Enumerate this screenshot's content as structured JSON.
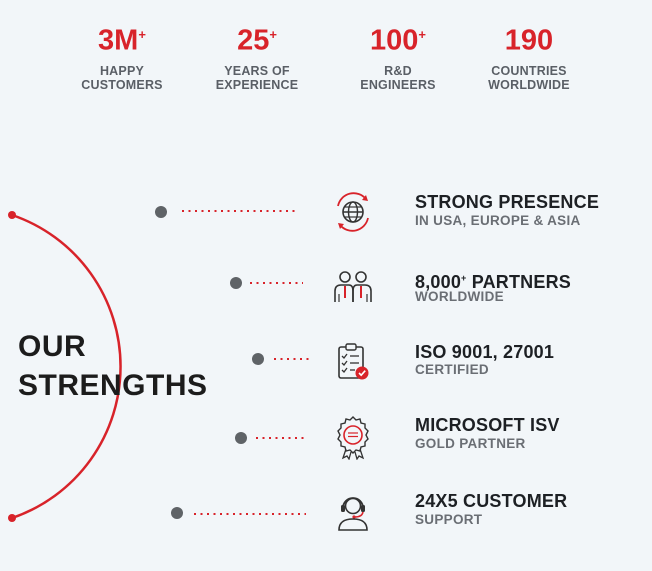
{
  "stats": [
    {
      "value": "3M",
      "suffix": "+",
      "line1": "HAPPY",
      "line2": "CUSTOMERS"
    },
    {
      "value": "25",
      "suffix": "+",
      "line1": "YEARS OF",
      "line2": "EXPERIENCE"
    },
    {
      "value": "100",
      "suffix": "+",
      "line1": "R&D",
      "line2": "ENGINEERS"
    },
    {
      "value": "190",
      "suffix": "",
      "line1": "COUNTRIES",
      "line2": "WORLDWIDE"
    }
  ],
  "section": {
    "title_line1": "OUR",
    "title_line2": "STRENGTHS"
  },
  "strengths": [
    {
      "icon": "globe-icon",
      "title": "STRONG PRESENCE",
      "title_suffix": "",
      "title_rest": "",
      "subtitle": "IN USA, EUROPE & ASIA"
    },
    {
      "icon": "partners-icon",
      "title": "8,000",
      "title_suffix": "+",
      "title_rest": " PARTNERS",
      "subtitle": "WORLDWIDE"
    },
    {
      "icon": "checklist-icon",
      "title": "ISO 9001, 27001",
      "title_suffix": "",
      "title_rest": "",
      "subtitle": "CERTIFIED"
    },
    {
      "icon": "award-badge-icon",
      "title": "MICROSOFT ISV",
      "title_suffix": "",
      "title_rest": "",
      "subtitle": "GOLD PARTNER"
    },
    {
      "icon": "headset-support-icon",
      "title": "24X5 CUSTOMER",
      "title_suffix": "",
      "title_rest": "",
      "subtitle": "SUPPORT"
    }
  ],
  "colors": {
    "accent": "#d8232a",
    "dark": "#1d2024",
    "muted": "#6a6e74",
    "background": "#f2f6f9"
  }
}
